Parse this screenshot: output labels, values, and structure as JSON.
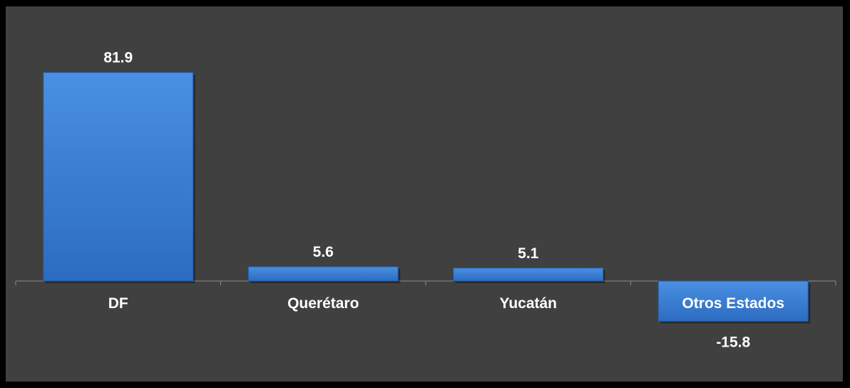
{
  "chart_data": {
    "type": "bar",
    "title": "",
    "xlabel": "",
    "ylabel": "",
    "categories": [
      "DF",
      "Querétaro",
      "Yucatán",
      "Otros Estados"
    ],
    "values": [
      81.9,
      5.6,
      5.1,
      -15.8
    ],
    "value_labels": [
      "81.9",
      "5.6",
      "5.1",
      "-15.8"
    ],
    "ylim": [
      -40,
      95
    ],
    "grid": false,
    "legend": "none",
    "colors": {
      "background": "#404040",
      "frame": "#000000",
      "bar_top": "#4a90e2",
      "bar_bottom": "#2c6cc0",
      "bar_edge": "#1f5aa8",
      "text": "#ffffff",
      "axis": "#8c8c8c"
    }
  }
}
